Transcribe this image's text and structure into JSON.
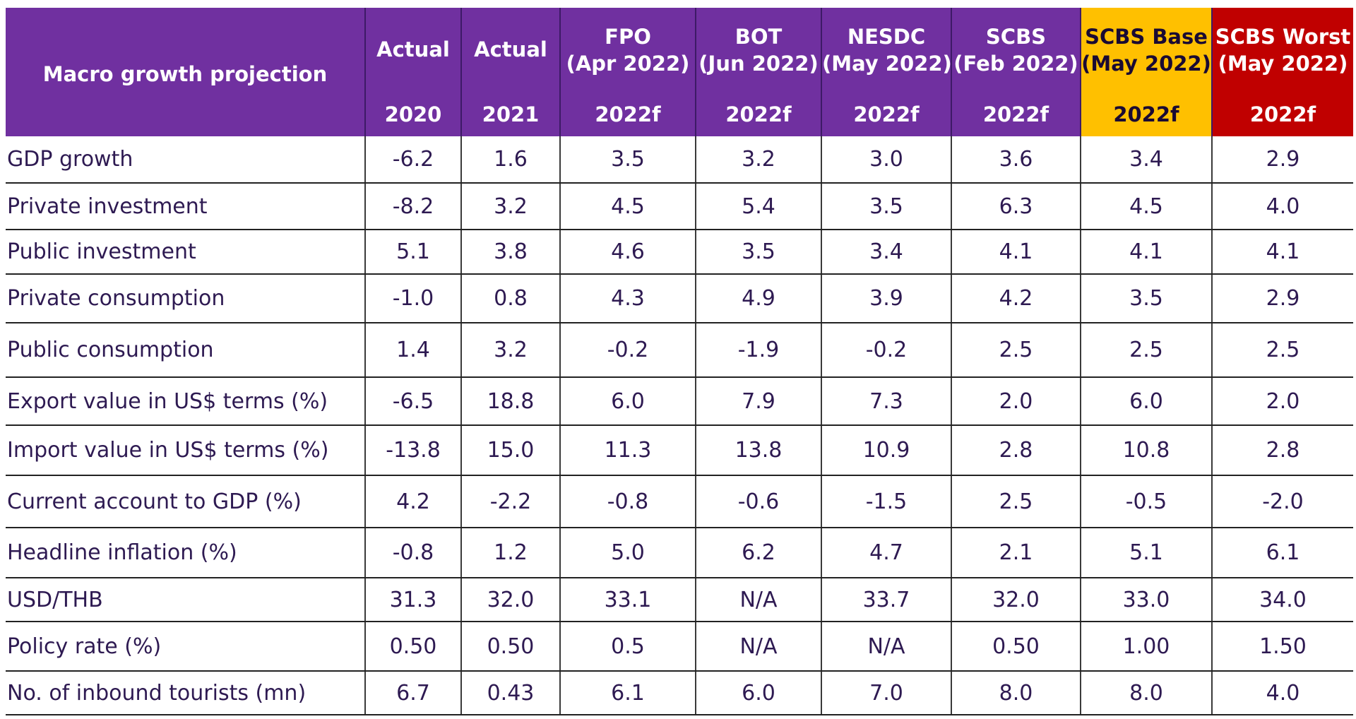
{
  "table": {
    "header": {
      "label": "Macro growth projection",
      "columns": [
        {
          "top": "Actual",
          "sub": "",
          "year": "2020"
        },
        {
          "top": "Actual",
          "sub": "",
          "year": "2021"
        },
        {
          "top": "FPO",
          "sub": "(Apr 2022)",
          "year": "2022f"
        },
        {
          "top": "BOT",
          "sub": "(Jun 2022)",
          "year": "2022f"
        },
        {
          "top": "NESDC",
          "sub": "(May 2022)",
          "year": "2022f"
        },
        {
          "top": "SCBS",
          "sub": "(Feb 2022)",
          "year": "2022f"
        },
        {
          "top": "SCBS Base",
          "sub": "(May 2022)",
          "year": "2022f"
        },
        {
          "top": "SCBS Worst",
          "sub": "(May 2022)",
          "year": "2022f"
        }
      ]
    },
    "rows": [
      {
        "label": "GDP growth",
        "values": [
          "-6.2",
          "1.6",
          "3.5",
          "3.2",
          "3.0",
          "3.6",
          "3.4",
          "2.9"
        ]
      },
      {
        "label": "Private investment",
        "values": [
          "-8.2",
          "3.2",
          "4.5",
          "5.4",
          "3.5",
          "6.3",
          "4.5",
          "4.0"
        ]
      },
      {
        "label": "Public investment",
        "values": [
          "5.1",
          "3.8",
          "4.6",
          "3.5",
          "3.4",
          "4.1",
          "4.1",
          "4.1"
        ]
      },
      {
        "label": "Private consumption",
        "values": [
          "-1.0",
          "0.8",
          "4.3",
          "4.9",
          "3.9",
          "4.2",
          "3.5",
          "2.9"
        ]
      },
      {
        "label": "Public consumption",
        "values": [
          "1.4",
          "3.2",
          "-0.2",
          "-1.9",
          "-0.2",
          "2.5",
          "2.5",
          "2.5"
        ]
      },
      {
        "label": "Export value in US$ terms (%)",
        "values": [
          "-6.5",
          "18.8",
          "6.0",
          "7.9",
          "7.3",
          "2.0",
          "6.0",
          "2.0"
        ]
      },
      {
        "label": "Import value in US$ terms (%)",
        "values": [
          "-13.8",
          "15.0",
          "11.3",
          "13.8",
          "10.9",
          "2.8",
          "10.8",
          "2.8"
        ]
      },
      {
        "label": "Current account to GDP (%)",
        "values": [
          "4.2",
          "-2.2",
          "-0.8",
          "-0.6",
          "-1.5",
          "2.5",
          "-0.5",
          "-2.0"
        ]
      },
      {
        "label": "Headline inflation (%)",
        "values": [
          "-0.8",
          "1.2",
          "5.0",
          "6.2",
          "4.7",
          "2.1",
          "5.1",
          "6.1"
        ]
      },
      {
        "label": "USD/THB",
        "values": [
          "31.3",
          "32.0",
          "33.1",
          "N/A",
          "33.7",
          "32.0",
          "33.0",
          "34.0"
        ]
      },
      {
        "label": "Policy rate (%)",
        "values": [
          "0.50",
          "0.50",
          "0.5",
          "N/A",
          "N/A",
          "0.50",
          "1.00",
          "1.50"
        ]
      },
      {
        "label": "No. of inbound tourists (mn)",
        "values": [
          "6.7",
          "0.43",
          "6.1",
          "6.0",
          "7.0",
          "8.0",
          "8.0",
          "4.0"
        ]
      }
    ]
  },
  "colors": {
    "header_purple": "#7030a0",
    "base_yellow": "#ffc000",
    "worst_red": "#c00000",
    "text_dark": "#2e1a52"
  }
}
